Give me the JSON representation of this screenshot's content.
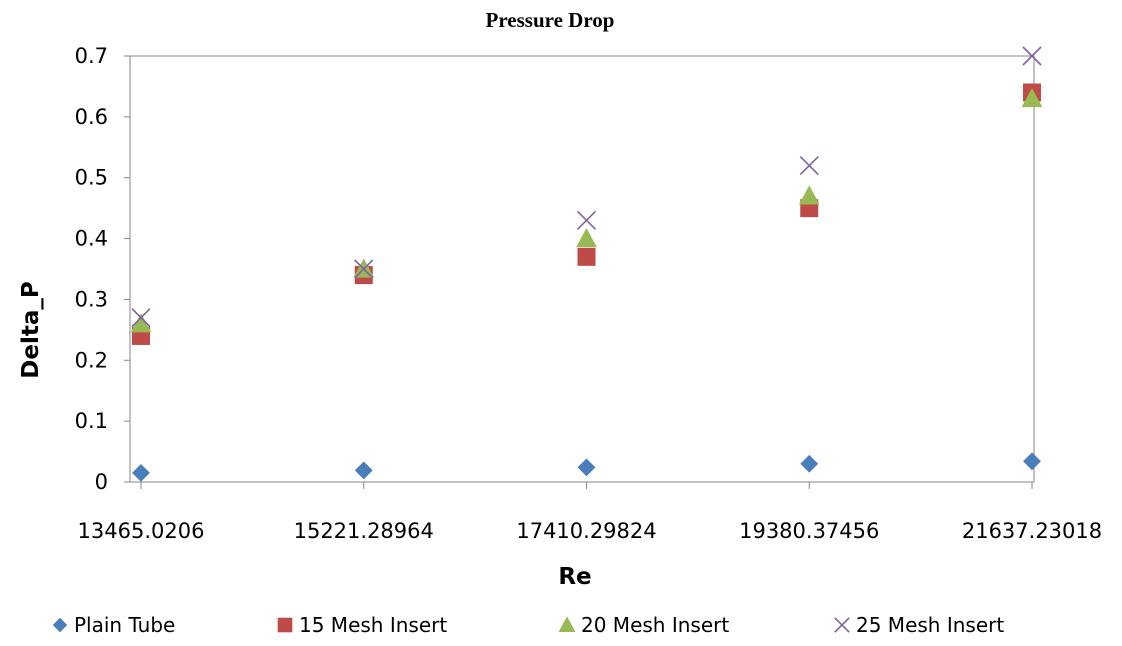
{
  "chart_data": {
    "type": "scatter",
    "title": "Pressure Drop",
    "xlabel": "Re",
    "ylabel": "Delta_P",
    "categories": [
      "13465.0206",
      "15221.28964",
      "17410.29824",
      "19380.37456",
      "21637.23018"
    ],
    "ylim": [
      0,
      0.7
    ],
    "yticks": [
      "0",
      "0.1",
      "0.2",
      "0.3",
      "0.4",
      "0.5",
      "0.6",
      "0.7"
    ],
    "grid": false,
    "legend_position": "bottom",
    "series": [
      {
        "name": "Plain Tube",
        "marker": "diamond",
        "color": "#4A7EBB",
        "values": [
          0.015,
          0.019,
          0.024,
          0.03,
          0.034
        ]
      },
      {
        "name": "15 Mesh Insert",
        "marker": "square",
        "color": "#BE4B48",
        "values": [
          0.24,
          0.34,
          0.37,
          0.45,
          0.64
        ]
      },
      {
        "name": "20 Mesh Insert",
        "marker": "triangle",
        "color": "#98B954",
        "values": [
          0.26,
          0.35,
          0.4,
          0.47,
          0.63
        ]
      },
      {
        "name": "25 Mesh Insert",
        "marker": "x",
        "color": "#8064A2",
        "values": [
          0.27,
          0.35,
          0.43,
          0.52,
          0.7
        ]
      }
    ]
  }
}
